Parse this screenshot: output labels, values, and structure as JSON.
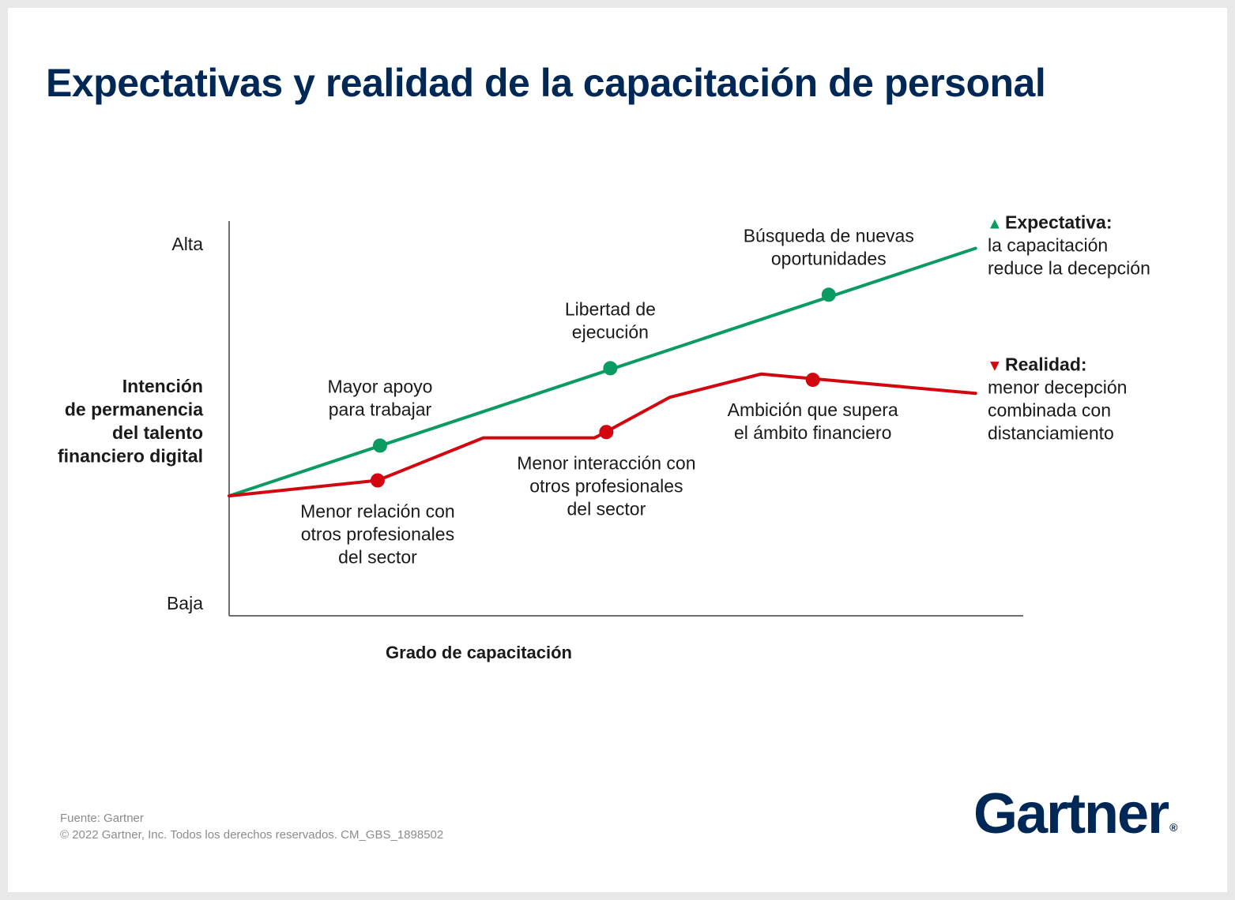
{
  "title": "Expectativas y realidad de la capacitación de personal",
  "chart_data": {
    "type": "line",
    "xlabel": "Grado de capacitación",
    "ylabel": [
      "Intención",
      "de permanencia",
      "del talento",
      "financiero digital"
    ],
    "y_ticks": {
      "top": "Alta",
      "bottom": "Baja"
    },
    "xlim": [
      0,
      100
    ],
    "ylim": [
      0,
      100
    ],
    "series": [
      {
        "key": "expectativa",
        "color": "#0a9b62",
        "marker": "▲",
        "legend_title": "Expectativa:",
        "legend_lines": [
          "la capacitación",
          "reduce la decepción"
        ],
        "points": [
          [
            0,
            31
          ],
          [
            94,
            95
          ]
        ],
        "milestones": [
          {
            "x": 19,
            "y": 44,
            "label": [
              "Mayor apoyo",
              "para trabajar"
            ]
          },
          {
            "x": 48,
            "y": 64,
            "label": [
              "Libertad de",
              "ejecución"
            ]
          },
          {
            "x": 75.5,
            "y": 83,
            "label": [
              "Búsqueda de nuevas",
              "oportunidades"
            ]
          }
        ]
      },
      {
        "key": "realidad",
        "color": "#d3050f",
        "marker": "▼",
        "legend_title": "Realidad:",
        "legend_lines": [
          "menor decepción",
          "combinada con",
          "distanciamiento"
        ],
        "points": [
          [
            0,
            31
          ],
          [
            18.7,
            35
          ],
          [
            32,
            46
          ],
          [
            46,
            46
          ],
          [
            46.5,
            46.5
          ],
          [
            55.5,
            56.5
          ],
          [
            67,
            62.5
          ],
          [
            94,
            57.5
          ]
        ],
        "milestones": [
          {
            "x": 18.7,
            "y": 35,
            "label": [
              "Menor relación con",
              "otros profesionales",
              "del sector"
            ]
          },
          {
            "x": 47.5,
            "y": 47.5,
            "label": [
              "Menor interacción con",
              "otros profesionales",
              "del sector"
            ]
          },
          {
            "x": 73.5,
            "y": 61,
            "label": [
              "Ambición que supera",
              "el ámbito financiero"
            ]
          }
        ]
      }
    ]
  },
  "footer": {
    "source": "Fuente: Gartner",
    "copyright": "© 2022 Gartner, Inc. Todos los derechos reservados. CM_GBS_1898502"
  },
  "logo": {
    "text": "Gartner",
    "reg": "®"
  }
}
